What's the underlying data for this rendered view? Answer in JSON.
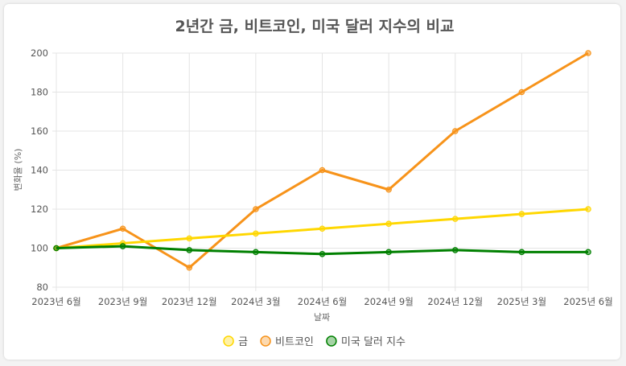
{
  "chart_data": {
    "type": "line",
    "title": "2년간 금, 비트코인, 미국 달러 지수의 비교",
    "xlabel": "날짜",
    "ylabel": "변화율 (%)",
    "categories": [
      "2023년 6월",
      "2023년 9월",
      "2023년 12월",
      "2024년 3월",
      "2024년 6월",
      "2024년 9월",
      "2024년 12월",
      "2025년 3월",
      "2025년 6월"
    ],
    "ylim": [
      80,
      200
    ],
    "yticks": [
      80,
      100,
      120,
      140,
      160,
      180,
      200
    ],
    "grid": true,
    "legend_position": "bottom",
    "series": [
      {
        "name": "금",
        "color": "#FFD700",
        "values": [
          100,
          102.5,
          105,
          107.5,
          110,
          112.5,
          115,
          117.5,
          120
        ]
      },
      {
        "name": "비트코인",
        "color": "#F7931A",
        "values": [
          100,
          110,
          90,
          120,
          140,
          130,
          160,
          180,
          200
        ]
      },
      {
        "name": "미국 달러 지수",
        "color": "#008000",
        "values": [
          100,
          101,
          99,
          98,
          97,
          98,
          99,
          98,
          98
        ]
      }
    ]
  }
}
